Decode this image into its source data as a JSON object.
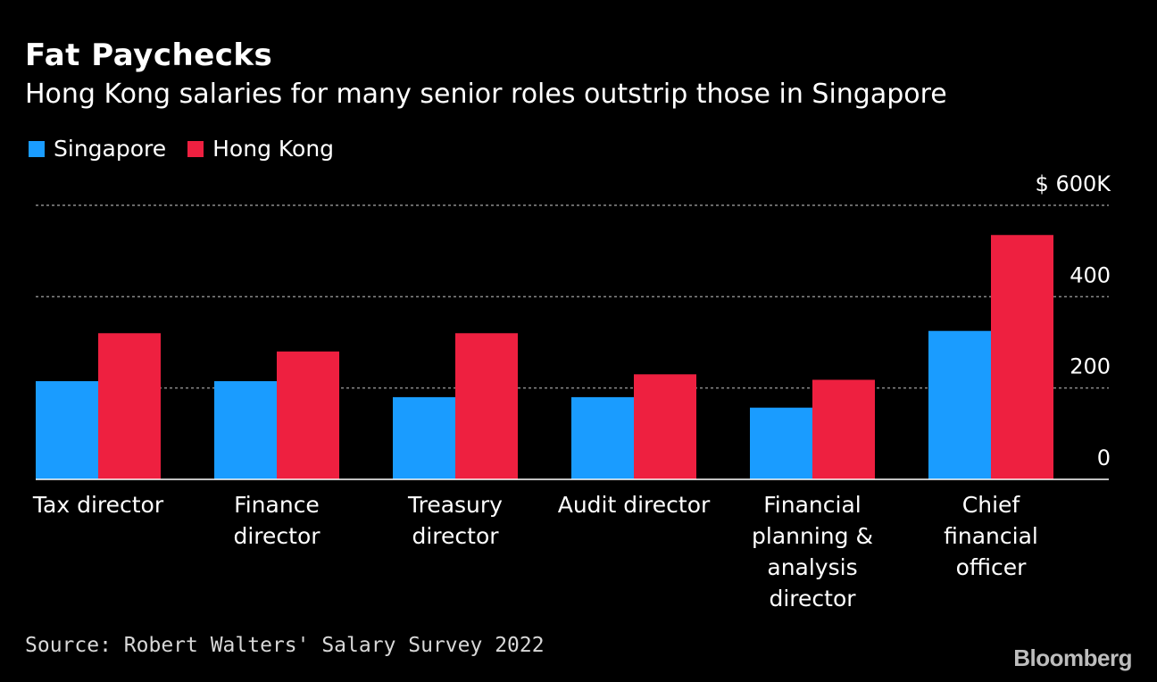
{
  "header": {
    "title": "Fat Paychecks",
    "subtitle": "Hong Kong salaries for many senior roles outstrip those in Singapore"
  },
  "legend": [
    {
      "name": "Singapore",
      "color": "#1a9cff"
    },
    {
      "name": "Hong Kong",
      "color": "#ee2040"
    }
  ],
  "chart_data": {
    "type": "bar",
    "title": "Fat Paychecks",
    "subtitle": "Hong Kong salaries for many senior roles outstrip those in Singapore",
    "categories": [
      [
        "Tax director"
      ],
      [
        "Finance",
        "director"
      ],
      [
        "Treasury",
        "director"
      ],
      [
        "Audit director"
      ],
      [
        "Financial",
        "planning &",
        "analysis",
        "director"
      ],
      [
        "Chief",
        "financial",
        "officer"
      ]
    ],
    "series": [
      {
        "name": "Singapore",
        "color": "#1a9cff",
        "values": [
          215,
          215,
          180,
          180,
          157,
          325
        ]
      },
      {
        "name": "Hong Kong",
        "color": "#ee2040",
        "values": [
          320,
          280,
          320,
          230,
          218,
          535
        ]
      }
    ],
    "ylim": [
      0,
      600
    ],
    "yticks": [
      0,
      200,
      400,
      600
    ],
    "ytick_labels": [
      "0",
      "200",
      "400",
      "$ 600K"
    ],
    "xlabel": "",
    "ylabel": "",
    "grid": true,
    "legend_position": "top-left"
  },
  "footer": {
    "source": "Source: Robert Walters' Salary Survey 2022",
    "brand": "Bloomberg"
  }
}
